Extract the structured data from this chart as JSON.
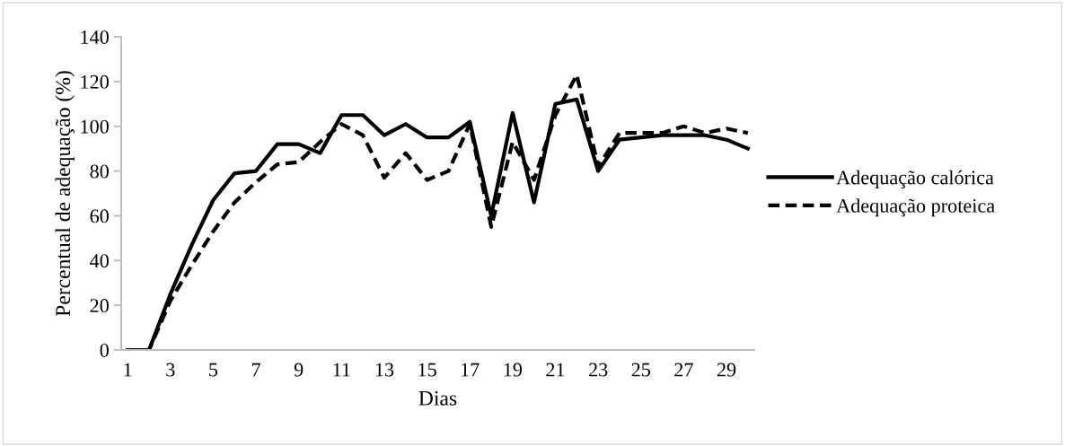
{
  "chart_data": {
    "type": "line",
    "xlabel": "Dias",
    "ylabel": "Percentual de adequação (%)",
    "categories": [
      "1",
      null,
      "3",
      null,
      "5",
      null,
      "7",
      null,
      "9",
      null,
      "11",
      null,
      "13",
      null,
      "15",
      null,
      "17",
      null,
      "19",
      null,
      "21",
      null,
      "23",
      null,
      "25",
      null,
      "27",
      null,
      "29",
      null
    ],
    "series": [
      {
        "name": "Adequação calórica",
        "color": "#000000",
        "line_style": "solid",
        "values": [
          0,
          0,
          25,
          47,
          67,
          79,
          80,
          92,
          92,
          88,
          105,
          105,
          96,
          101,
          95,
          95,
          102,
          60,
          106,
          66,
          110,
          112,
          80,
          94,
          95,
          96,
          96,
          96,
          94,
          90
        ]
      },
      {
        "name": "Adequação proteica",
        "color": "#000000",
        "line_style": "dashed",
        "values": [
          0,
          0,
          22,
          38,
          53,
          66,
          75,
          83,
          84,
          93,
          101,
          96,
          77,
          88,
          76,
          80,
          101,
          55,
          93,
          76,
          105,
          123,
          82,
          97,
          97,
          97,
          100,
          97,
          99,
          97
        ]
      }
    ],
    "ylim": [
      0,
      140
    ],
    "yticks": [
      0,
      20,
      40,
      60,
      80,
      100,
      120,
      140
    ],
    "grid": false,
    "legend": "right",
    "marker": "none"
  }
}
